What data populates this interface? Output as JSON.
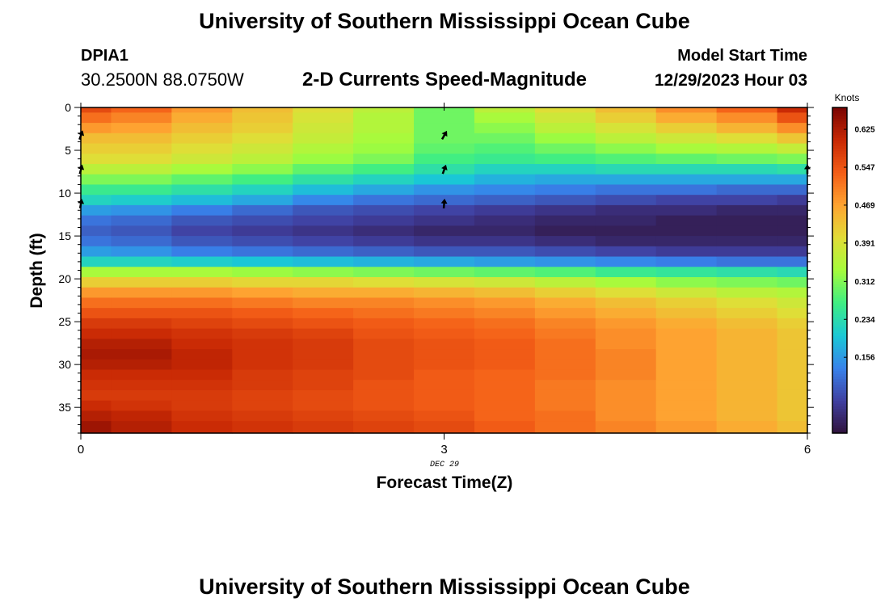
{
  "header": {
    "title": "University of Southern Mississippi Ocean Cube",
    "title_repeat": "University of Southern Mississippi Ocean Cube",
    "station_id": "DPIA1",
    "station_coords": "30.2500N  88.0750W",
    "chart_title": "2-D Currents Speed-Magnitude",
    "model_start_label": "Model Start Time",
    "model_start_value": "12/29/2023 Hour 03"
  },
  "chart_data": {
    "type": "heatmap",
    "title": "2-D Currents Speed-Magnitude",
    "xlabel": "Forecast Time(Z)",
    "ylabel": "Depth (ft)",
    "x_date_label": "DEC 29",
    "x_ticks": [
      "0",
      "3",
      "6"
    ],
    "x_tick_values": [
      0,
      3,
      6
    ],
    "y_ticks": [
      "0",
      "5",
      "10",
      "15",
      "20",
      "25",
      "30",
      "35"
    ],
    "y_tick_values": [
      0,
      5,
      10,
      15,
      20,
      25,
      30,
      35
    ],
    "xlim": [
      0,
      6
    ],
    "ylim": [
      0,
      38
    ],
    "y_inverted": true,
    "time_columns": [
      0,
      0.5,
      1.0,
      1.5,
      2.0,
      2.5,
      3.0,
      3.5,
      4.0,
      4.5,
      5.0,
      5.5,
      6.0
    ],
    "depth_profile_ft": [
      0,
      1.2,
      2.4,
      3.6,
      4.8,
      6,
      7.2,
      8.4,
      9.6,
      10.8,
      12,
      13.2,
      14.4,
      15.6,
      16.8,
      18,
      19.2,
      20.4,
      21.6,
      22.8,
      24,
      25.2,
      26.4,
      27.6,
      28.8,
      30,
      31.2,
      32.4,
      33.6,
      34.8,
      36,
      37.2
    ],
    "speed_knots_by_time": [
      [
        0.56,
        0.52,
        0.48,
        0.44,
        0.42,
        0.4,
        0.36,
        0.31,
        0.26,
        0.22,
        0.16,
        0.12,
        0.1,
        0.12,
        0.16,
        0.22,
        0.34,
        0.42,
        0.48,
        0.52,
        0.55,
        0.58,
        0.6,
        0.62,
        0.63,
        0.62,
        0.6,
        0.59,
        0.58,
        0.6,
        0.62,
        0.64
      ],
      [
        0.53,
        0.5,
        0.47,
        0.44,
        0.42,
        0.4,
        0.36,
        0.31,
        0.26,
        0.21,
        0.15,
        0.11,
        0.09,
        0.11,
        0.15,
        0.22,
        0.34,
        0.42,
        0.48,
        0.52,
        0.55,
        0.58,
        0.6,
        0.62,
        0.63,
        0.62,
        0.6,
        0.59,
        0.58,
        0.59,
        0.61,
        0.62
      ],
      [
        0.48,
        0.46,
        0.44,
        0.42,
        0.4,
        0.38,
        0.34,
        0.29,
        0.24,
        0.19,
        0.13,
        0.09,
        0.07,
        0.09,
        0.13,
        0.21,
        0.34,
        0.42,
        0.48,
        0.52,
        0.55,
        0.57,
        0.59,
        0.6,
        0.61,
        0.61,
        0.6,
        0.59,
        0.58,
        0.58,
        0.59,
        0.6
      ],
      [
        0.44,
        0.43,
        0.42,
        0.4,
        0.38,
        0.36,
        0.32,
        0.27,
        0.22,
        0.17,
        0.11,
        0.08,
        0.06,
        0.08,
        0.12,
        0.2,
        0.33,
        0.41,
        0.47,
        0.51,
        0.54,
        0.56,
        0.58,
        0.59,
        0.59,
        0.59,
        0.58,
        0.58,
        0.57,
        0.57,
        0.58,
        0.59
      ],
      [
        0.4,
        0.39,
        0.38,
        0.37,
        0.35,
        0.33,
        0.29,
        0.24,
        0.19,
        0.14,
        0.09,
        0.07,
        0.05,
        0.07,
        0.11,
        0.19,
        0.32,
        0.41,
        0.46,
        0.5,
        0.53,
        0.55,
        0.57,
        0.58,
        0.58,
        0.58,
        0.57,
        0.57,
        0.56,
        0.56,
        0.57,
        0.58
      ],
      [
        0.36,
        0.35,
        0.35,
        0.34,
        0.33,
        0.31,
        0.27,
        0.22,
        0.17,
        0.12,
        0.08,
        0.06,
        0.04,
        0.06,
        0.1,
        0.18,
        0.31,
        0.4,
        0.46,
        0.5,
        0.52,
        0.54,
        0.55,
        0.56,
        0.56,
        0.56,
        0.56,
        0.55,
        0.55,
        0.55,
        0.56,
        0.57
      ],
      [
        0.3,
        0.3,
        0.3,
        0.3,
        0.29,
        0.27,
        0.24,
        0.2,
        0.15,
        0.11,
        0.07,
        0.05,
        0.03,
        0.05,
        0.09,
        0.17,
        0.3,
        0.39,
        0.45,
        0.49,
        0.51,
        0.53,
        0.54,
        0.55,
        0.55,
        0.55,
        0.54,
        0.54,
        0.54,
        0.54,
        0.55,
        0.56
      ],
      [
        0.36,
        0.34,
        0.32,
        0.3,
        0.28,
        0.26,
        0.22,
        0.18,
        0.14,
        0.1,
        0.06,
        0.04,
        0.03,
        0.05,
        0.09,
        0.16,
        0.29,
        0.38,
        0.44,
        0.48,
        0.5,
        0.52,
        0.53,
        0.54,
        0.54,
        0.54,
        0.53,
        0.53,
        0.53,
        0.53,
        0.53,
        0.54
      ],
      [
        0.4,
        0.38,
        0.36,
        0.33,
        0.3,
        0.27,
        0.22,
        0.17,
        0.13,
        0.09,
        0.05,
        0.03,
        0.02,
        0.04,
        0.08,
        0.15,
        0.28,
        0.36,
        0.42,
        0.46,
        0.48,
        0.5,
        0.51,
        0.52,
        0.52,
        0.52,
        0.52,
        0.51,
        0.51,
        0.51,
        0.52,
        0.52
      ],
      [
        0.44,
        0.42,
        0.39,
        0.36,
        0.32,
        0.28,
        0.23,
        0.17,
        0.12,
        0.08,
        0.04,
        0.03,
        0.02,
        0.03,
        0.07,
        0.14,
        0.26,
        0.34,
        0.4,
        0.44,
        0.46,
        0.48,
        0.49,
        0.49,
        0.5,
        0.5,
        0.5,
        0.49,
        0.49,
        0.49,
        0.49,
        0.5
      ],
      [
        0.49,
        0.46,
        0.42,
        0.38,
        0.34,
        0.29,
        0.23,
        0.17,
        0.12,
        0.07,
        0.04,
        0.02,
        0.02,
        0.03,
        0.06,
        0.13,
        0.25,
        0.32,
        0.38,
        0.42,
        0.44,
        0.46,
        0.47,
        0.47,
        0.47,
        0.47,
        0.47,
        0.47,
        0.47,
        0.47,
        0.47,
        0.48
      ],
      [
        0.53,
        0.49,
        0.45,
        0.4,
        0.35,
        0.3,
        0.23,
        0.17,
        0.11,
        0.07,
        0.03,
        0.02,
        0.02,
        0.03,
        0.06,
        0.12,
        0.24,
        0.31,
        0.36,
        0.4,
        0.42,
        0.44,
        0.45,
        0.45,
        0.45,
        0.45,
        0.45,
        0.45,
        0.45,
        0.45,
        0.45,
        0.46
      ],
      [
        0.6,
        0.55,
        0.49,
        0.43,
        0.37,
        0.31,
        0.24,
        0.17,
        0.11,
        0.06,
        0.03,
        0.02,
        0.02,
        0.03,
        0.06,
        0.12,
        0.23,
        0.3,
        0.35,
        0.38,
        0.4,
        0.42,
        0.43,
        0.43,
        0.43,
        0.43,
        0.43,
        0.43,
        0.43,
        0.43,
        0.43,
        0.44
      ]
    ],
    "vectors": [
      {
        "time": 0,
        "depth_ft": 3.3,
        "direction_deg": 20
      },
      {
        "time": 0,
        "depth_ft": 7.3,
        "direction_deg": 15
      },
      {
        "time": 0,
        "depth_ft": 11.3,
        "direction_deg": 10
      },
      {
        "time": 3,
        "depth_ft": 3.3,
        "direction_deg": 30
      },
      {
        "time": 3,
        "depth_ft": 7.3,
        "direction_deg": 20
      },
      {
        "time": 3,
        "depth_ft": 11.3,
        "direction_deg": 5
      },
      {
        "time": 6,
        "depth_ft": 7.3,
        "direction_deg": 0
      }
    ],
    "colorbar": {
      "label": "Knots",
      "ticks": [
        "0.625",
        "0.547",
        "0.469",
        "0.391",
        "0.312",
        "0.234",
        "0.156"
      ],
      "tick_values": [
        0.625,
        0.547,
        0.469,
        0.391,
        0.312,
        0.234,
        0.156
      ],
      "range": [
        0,
        0.67
      ]
    }
  }
}
